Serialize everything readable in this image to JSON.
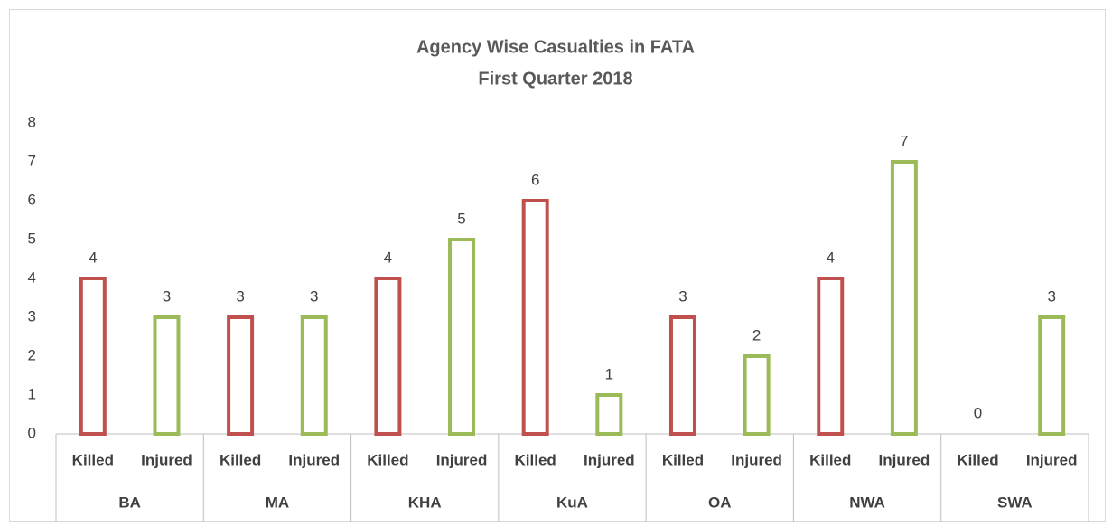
{
  "chart_data": {
    "type": "bar",
    "title": "Agency Wise Casualties in FATA",
    "subtitle": "First Quarter 2018",
    "categories": [
      "BA",
      "MA",
      "KHA",
      "KuA",
      "OA",
      "NWA",
      "SWA"
    ],
    "series": [
      {
        "name": "Killed",
        "color": "#c0504d",
        "values": [
          4,
          3,
          4,
          6,
          3,
          4,
          0
        ]
      },
      {
        "name": "Injured",
        "color": "#9bbb59",
        "values": [
          3,
          3,
          5,
          1,
          2,
          7,
          3
        ]
      }
    ],
    "ylim": [
      0,
      8
    ],
    "yticks": [
      0,
      1,
      2,
      3,
      4,
      5,
      6,
      7,
      8
    ],
    "grid": false
  }
}
